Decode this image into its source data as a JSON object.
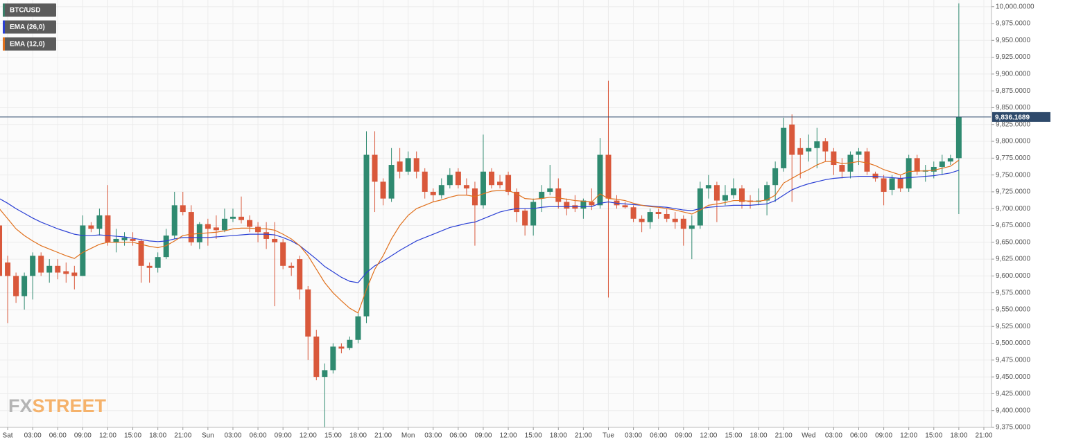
{
  "chart_data": {
    "type": "candlestick",
    "symbol": "BTC/USD",
    "symbol_color": "#3a7d68",
    "up_color": "#2f8a70",
    "down_color": "#d9583b",
    "grid": true,
    "brand": [
      "FX",
      "STREET"
    ],
    "last_price": {
      "value": 9836.1689,
      "label": "9,836.1689"
    },
    "ylim": [
      9375,
      10010
    ],
    "yticks": [
      {
        "value": 9375,
        "label": "9,375.0000"
      },
      {
        "value": 9400,
        "label": "9,400.0000"
      },
      {
        "value": 9425,
        "label": "9,425.0000"
      },
      {
        "value": 9450,
        "label": "9,450.0000"
      },
      {
        "value": 9475,
        "label": "9,475.0000"
      },
      {
        "value": 9500,
        "label": "9,500.0000"
      },
      {
        "value": 9525,
        "label": "9,525.0000"
      },
      {
        "value": 9550,
        "label": "9,550.0000"
      },
      {
        "value": 9575,
        "label": "9,575.0000"
      },
      {
        "value": 9600,
        "label": "9,600.0000"
      },
      {
        "value": 9625,
        "label": "9,625.0000"
      },
      {
        "value": 9650,
        "label": "9,650.0000"
      },
      {
        "value": 9675,
        "label": "9,675.0000"
      },
      {
        "value": 9700,
        "label": "9,700.0000"
      },
      {
        "value": 9725,
        "label": "9,725.0000"
      },
      {
        "value": 9750,
        "label": "9,750.0000"
      },
      {
        "value": 9775,
        "label": "9,775.0000"
      },
      {
        "value": 9800,
        "label": "9,800.0000"
      },
      {
        "value": 9825,
        "label": "9,825.0000"
      },
      {
        "value": 9850,
        "label": "9,850.0000"
      },
      {
        "value": 9875,
        "label": "9,875.0000"
      },
      {
        "value": 9900,
        "label": "9,900.0000"
      },
      {
        "value": 9925,
        "label": "9,925.0000"
      },
      {
        "value": 9950,
        "label": "9,950.0000"
      },
      {
        "value": 9975,
        "label": "9,975.0000"
      },
      {
        "value": 10000,
        "label": "10,000.0000"
      }
    ],
    "categories": [
      null,
      "Sat",
      null,
      null,
      "03:00",
      null,
      null,
      "06:00",
      null,
      null,
      "09:00",
      null,
      null,
      "12:00",
      null,
      null,
      "15:00",
      null,
      null,
      "18:00",
      null,
      null,
      "21:00",
      null,
      null,
      "Sun",
      null,
      null,
      "03:00",
      null,
      null,
      "06:00",
      null,
      null,
      "09:00",
      null,
      null,
      "12:00",
      null,
      null,
      "15:00",
      null,
      null,
      "18:00",
      null,
      null,
      "21:00",
      null,
      null,
      "Mon",
      null,
      null,
      "03:00",
      null,
      null,
      "06:00",
      null,
      null,
      "09:00",
      null,
      null,
      "12:00",
      null,
      null,
      "15:00",
      null,
      null,
      "18:00",
      null,
      null,
      "21:00",
      null,
      null,
      "Tue",
      null,
      null,
      "03:00",
      null,
      null,
      "06:00",
      null,
      null,
      "09:00",
      null,
      null,
      "12:00",
      null,
      null,
      "15:00",
      null,
      null,
      "18:00",
      null,
      null,
      "21:00",
      null,
      null,
      "Wed",
      null,
      null,
      "03:00",
      null,
      null,
      "06:00",
      null,
      null,
      "09:00",
      null,
      null,
      "12:00",
      null,
      null,
      "15:00",
      null,
      null,
      "18:00",
      null,
      null,
      "21:00"
    ],
    "open": [
      9675,
      9620,
      9600,
      9570,
      9600,
      9630,
      9605,
      9615,
      9607,
      9605,
      9600,
      9675,
      9670,
      9690,
      9650,
      9653,
      9655,
      9652,
      9615,
      9612,
      9628,
      9660,
      9705,
      9695,
      9650,
      9677,
      9672,
      9668,
      9685,
      9688,
      9683,
      9673,
      9665,
      9655,
      9650,
      9615,
      9625,
      9580,
      9510,
      9450,
      9460,
      9495,
      9493,
      9505,
      9540,
      9780,
      9740,
      9715,
      9770,
      9755,
      9775,
      9755,
      9725,
      9720,
      9735,
      9755,
      9735,
      9730,
      9705,
      9755,
      9740,
      9750,
      9725,
      9697,
      9675,
      9715,
      9725,
      9730,
      9710,
      9705,
      9700,
      9710,
      9705,
      9780,
      9712,
      9705,
      9702,
      9685,
      9680,
      9695,
      9692,
      9685,
      9685,
      9670,
      9675,
      9730,
      9735,
      9712,
      9720,
      9730,
      9712,
      9710,
      9712,
      9735,
      9760,
      9825,
      9790,
      9785,
      9790,
      9800,
      9785,
      9765,
      9755,
      9780,
      9785,
      9752,
      9745,
      9728,
      9745,
      9730,
      9775,
      9755,
      9755,
      9762,
      9770,
      9775,
      null,
      null,
      null
    ],
    "high": [
      9700,
      9630,
      9605,
      9605,
      9635,
      9635,
      9625,
      9625,
      9620,
      9615,
      9690,
      9680,
      9700,
      9735,
      9670,
      9665,
      9665,
      9655,
      9620,
      9635,
      9670,
      9725,
      9725,
      9705,
      9680,
      9685,
      9690,
      9700,
      9700,
      9718,
      9690,
      9680,
      9680,
      9680,
      9655,
      9620,
      9630,
      9585,
      9520,
      9470,
      9500,
      9500,
      9510,
      9545,
      9815,
      9815,
      9745,
      9790,
      9790,
      9785,
      9785,
      9760,
      9730,
      9745,
      9760,
      9760,
      9745,
      9740,
      9810,
      9760,
      9750,
      9755,
      9730,
      9700,
      9715,
      9735,
      9765,
      9745,
      9715,
      9720,
      9715,
      9730,
      9805,
      9890,
      9720,
      9710,
      9705,
      9690,
      9700,
      9700,
      9700,
      9695,
      9690,
      9690,
      9740,
      9750,
      9740,
      9735,
      9745,
      9735,
      9720,
      9730,
      9740,
      9770,
      9835,
      9840,
      9805,
      9810,
      9820,
      9805,
      9790,
      9775,
      9785,
      9790,
      9790,
      9755,
      9750,
      9750,
      9750,
      9780,
      9780,
      9765,
      9770,
      9780,
      9780,
      10005,
      null,
      null,
      null
    ],
    "low": [
      9590,
      9530,
      9560,
      9550,
      9565,
      9600,
      9590,
      9595,
      9590,
      9580,
      9600,
      9665,
      9660,
      9645,
      9635,
      9645,
      9645,
      9590,
      9590,
      9605,
      9625,
      9655,
      9690,
      9645,
      9640,
      9645,
      9655,
      9665,
      9680,
      9678,
      9665,
      9650,
      9640,
      9555,
      9610,
      9600,
      9565,
      9475,
      9445,
      9375,
      9455,
      9485,
      9490,
      9500,
      9530,
      9695,
      9705,
      9710,
      9745,
      9750,
      9745,
      9715,
      9710,
      9715,
      9730,
      9730,
      9720,
      9645,
      9700,
      9730,
      9730,
      9720,
      9680,
      9660,
      9660,
      9695,
      9720,
      9700,
      9690,
      9695,
      9685,
      9698,
      9700,
      9568,
      9700,
      9700,
      9680,
      9665,
      9670,
      9685,
      9680,
      9670,
      9645,
      9625,
      9670,
      9715,
      9680,
      9705,
      9715,
      9700,
      9700,
      9705,
      9690,
      9710,
      9755,
      9710,
      9745,
      9770,
      9760,
      9770,
      9750,
      9745,
      9745,
      9765,
      9750,
      9740,
      9705,
      9720,
      9725,
      9725,
      9750,
      9740,
      9745,
      9750,
      9765,
      9692,
      null,
      null,
      null
    ],
    "close": [
      9600,
      9600,
      9570,
      9600,
      9630,
      9605,
      9615,
      9605,
      9603,
      9600,
      9675,
      9670,
      9690,
      9650,
      9655,
      9657,
      9652,
      9615,
      9612,
      9628,
      9660,
      9705,
      9695,
      9650,
      9677,
      9670,
      9668,
      9685,
      9688,
      9683,
      9673,
      9665,
      9655,
      9650,
      9615,
      9612,
      9580,
      9510,
      9450,
      9460,
      9495,
      9492,
      9505,
      9540,
      9780,
      9740,
      9715,
      9765,
      9755,
      9775,
      9755,
      9725,
      9720,
      9735,
      9750,
      9735,
      9730,
      9705,
      9755,
      9735,
      9735,
      9725,
      9695,
      9675,
      9710,
      9725,
      9730,
      9710,
      9700,
      9700,
      9712,
      9705,
      9780,
      9715,
      9705,
      9702,
      9685,
      9680,
      9695,
      9692,
      9685,
      9680,
      9670,
      9675,
      9730,
      9735,
      9712,
      9720,
      9730,
      9710,
      9710,
      9712,
      9735,
      9760,
      9820,
      9780,
      9780,
      9790,
      9800,
      9785,
      9765,
      9755,
      9780,
      9785,
      9755,
      9745,
      9725,
      9745,
      9730,
      9775,
      9755,
      9757,
      9762,
      9770,
      9775,
      9836.1689,
      null,
      null,
      null
    ],
    "series": [
      {
        "name": "EMA (26,0)",
        "color": "#2a3fd4",
        "values": [
          9715,
          9708,
          9700,
          9693,
          9686,
          9680,
          9675,
          9670,
          9666,
          9662,
          9660,
          9660,
          9661,
          9660,
          9659,
          9658,
          9656,
          9654,
          9652,
          9651,
          9652,
          9655,
          9657,
          9657,
          9657,
          9657,
          9658,
          9659,
          9660,
          9661,
          9662,
          9662,
          9662,
          9661,
          9657,
          9652,
          9645,
          9635,
          9625,
          9614,
          9606,
          9598,
          9592,
          9590,
          9605,
          9615,
          9622,
          9630,
          9638,
          9645,
          9652,
          9657,
          9662,
          9667,
          9672,
          9675,
          9678,
          9680,
          9685,
          9690,
          9695,
          9698,
          9700,
          9700,
          9700,
          9702,
          9703,
          9703,
          9703,
          9703,
          9703,
          9703,
          9708,
          9710,
          9708,
          9707,
          9706,
          9705,
          9704,
          9703,
          9702,
          9700,
          9698,
          9697,
          9700,
          9702,
          9703,
          9704,
          9705,
          9705,
          9705,
          9706,
          9707,
          9712,
          9720,
          9728,
          9733,
          9737,
          9740,
          9743,
          9745,
          9746,
          9747,
          9748,
          9748,
          9748,
          9747,
          9746,
          9745,
          9746,
          9747,
          9748,
          9749,
          9751,
          9753,
          9757,
          null,
          null,
          null
        ]
      },
      {
        "name": "EMA (12,0)",
        "color": "#e0701c",
        "values": [
          9700,
          9685,
          9670,
          9660,
          9652,
          9645,
          9640,
          9635,
          9630,
          9626,
          9635,
          9641,
          9647,
          9650,
          9650,
          9650,
          9650,
          9647,
          9644,
          9642,
          9645,
          9652,
          9660,
          9662,
          9663,
          9664,
          9665,
          9667,
          9670,
          9671,
          9671,
          9670,
          9670,
          9668,
          9662,
          9655,
          9645,
          9630,
          9610,
          9590,
          9575,
          9563,
          9552,
          9545,
          9580,
          9610,
          9630,
          9655,
          9675,
          9690,
          9700,
          9705,
          9710,
          9713,
          9717,
          9720,
          9720,
          9718,
          9722,
          9726,
          9727,
          9727,
          9722,
          9715,
          9714,
          9715,
          9717,
          9716,
          9714,
          9712,
          9711,
          9710,
          9722,
          9715,
          9714,
          9712,
          9708,
          9705,
          9703,
          9702,
          9700,
          9698,
          9695,
          9692,
          9698,
          9705,
          9707,
          9709,
          9712,
          9712,
          9711,
          9711,
          9713,
          9720,
          9738,
          9745,
          9752,
          9758,
          9765,
          9770,
          9770,
          9767,
          9768,
          9770,
          9768,
          9764,
          9758,
          9754,
          9750,
          9755,
          9756,
          9756,
          9757,
          9760,
          9763,
          9772,
          null,
          null,
          null
        ]
      }
    ]
  }
}
